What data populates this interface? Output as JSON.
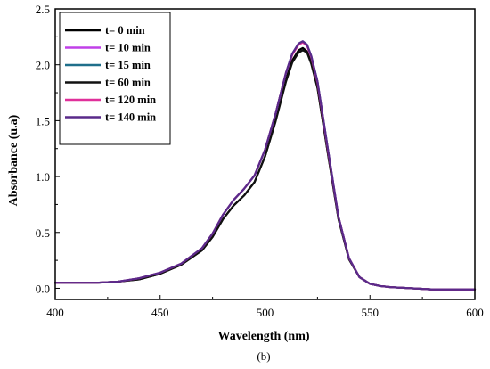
{
  "chart_data": {
    "type": "line",
    "xlabel": "Wavelength (nm)",
    "ylabel": "Absorbance (u.a)",
    "xlim": [
      400,
      600
    ],
    "ylim": [
      -0.1,
      2.5
    ],
    "xticks": [
      400,
      450,
      500,
      550,
      600
    ],
    "yticks": [
      0.0,
      0.5,
      1.0,
      1.5,
      2.0,
      2.5
    ],
    "ytick_labels": [
      "0.0",
      "0.5",
      "1.0",
      "1.5",
      "2.0",
      "2.5"
    ],
    "legend_position": "top-left",
    "grid": false,
    "caption": "(b)",
    "x": [
      400,
      420,
      430,
      440,
      450,
      460,
      470,
      475,
      480,
      485,
      490,
      495,
      500,
      505,
      510,
      513,
      516,
      518,
      520,
      522,
      525,
      530,
      535,
      540,
      545,
      550,
      555,
      560,
      570,
      580,
      600
    ],
    "series": [
      {
        "name": "t= 0 min",
        "color": "#000000",
        "values": [
          0.05,
          0.05,
          0.06,
          0.08,
          0.13,
          0.21,
          0.34,
          0.46,
          0.62,
          0.74,
          0.83,
          0.95,
          1.18,
          1.5,
          1.87,
          2.04,
          2.13,
          2.15,
          2.12,
          2.02,
          1.8,
          1.2,
          0.62,
          0.26,
          0.1,
          0.04,
          0.02,
          0.01,
          0.0,
          -0.01,
          -0.01
        ]
      },
      {
        "name": "t= 10 min",
        "color": "#c040e8",
        "values": [
          0.05,
          0.05,
          0.06,
          0.09,
          0.14,
          0.22,
          0.36,
          0.49,
          0.66,
          0.79,
          0.89,
          1.01,
          1.24,
          1.56,
          1.93,
          2.1,
          2.19,
          2.21,
          2.18,
          2.08,
          1.85,
          1.24,
          0.64,
          0.27,
          0.1,
          0.04,
          0.02,
          0.01,
          0.0,
          -0.01,
          -0.01
        ]
      },
      {
        "name": "t= 15 min",
        "color": "#1f6f8b",
        "values": [
          0.05,
          0.05,
          0.06,
          0.09,
          0.14,
          0.22,
          0.36,
          0.49,
          0.66,
          0.79,
          0.89,
          1.01,
          1.24,
          1.56,
          1.93,
          2.1,
          2.19,
          2.21,
          2.18,
          2.08,
          1.85,
          1.24,
          0.64,
          0.27,
          0.1,
          0.04,
          0.02,
          0.01,
          0.0,
          -0.01,
          -0.01
        ]
      },
      {
        "name": "t= 60 min",
        "color": "#111111",
        "values": [
          0.05,
          0.05,
          0.06,
          0.08,
          0.13,
          0.21,
          0.34,
          0.46,
          0.62,
          0.74,
          0.83,
          0.95,
          1.18,
          1.49,
          1.85,
          2.02,
          2.11,
          2.13,
          2.11,
          2.01,
          1.79,
          1.2,
          0.62,
          0.26,
          0.1,
          0.04,
          0.02,
          0.01,
          0.0,
          -0.01,
          -0.01
        ]
      },
      {
        "name": "t= 120 min",
        "color": "#e0309a",
        "values": [
          0.05,
          0.05,
          0.06,
          0.09,
          0.14,
          0.22,
          0.36,
          0.49,
          0.66,
          0.79,
          0.89,
          1.01,
          1.24,
          1.56,
          1.93,
          2.09,
          2.18,
          2.2,
          2.17,
          2.07,
          1.84,
          1.23,
          0.64,
          0.27,
          0.1,
          0.04,
          0.02,
          0.01,
          0.0,
          -0.01,
          -0.01
        ]
      },
      {
        "name": "t= 140 min",
        "color": "#5a2a8a",
        "values": [
          0.05,
          0.05,
          0.06,
          0.09,
          0.14,
          0.22,
          0.36,
          0.49,
          0.66,
          0.79,
          0.89,
          1.01,
          1.24,
          1.56,
          1.93,
          2.1,
          2.19,
          2.21,
          2.18,
          2.08,
          1.85,
          1.24,
          0.64,
          0.27,
          0.1,
          0.04,
          0.02,
          0.01,
          0.0,
          -0.01,
          -0.01
        ]
      }
    ]
  }
}
